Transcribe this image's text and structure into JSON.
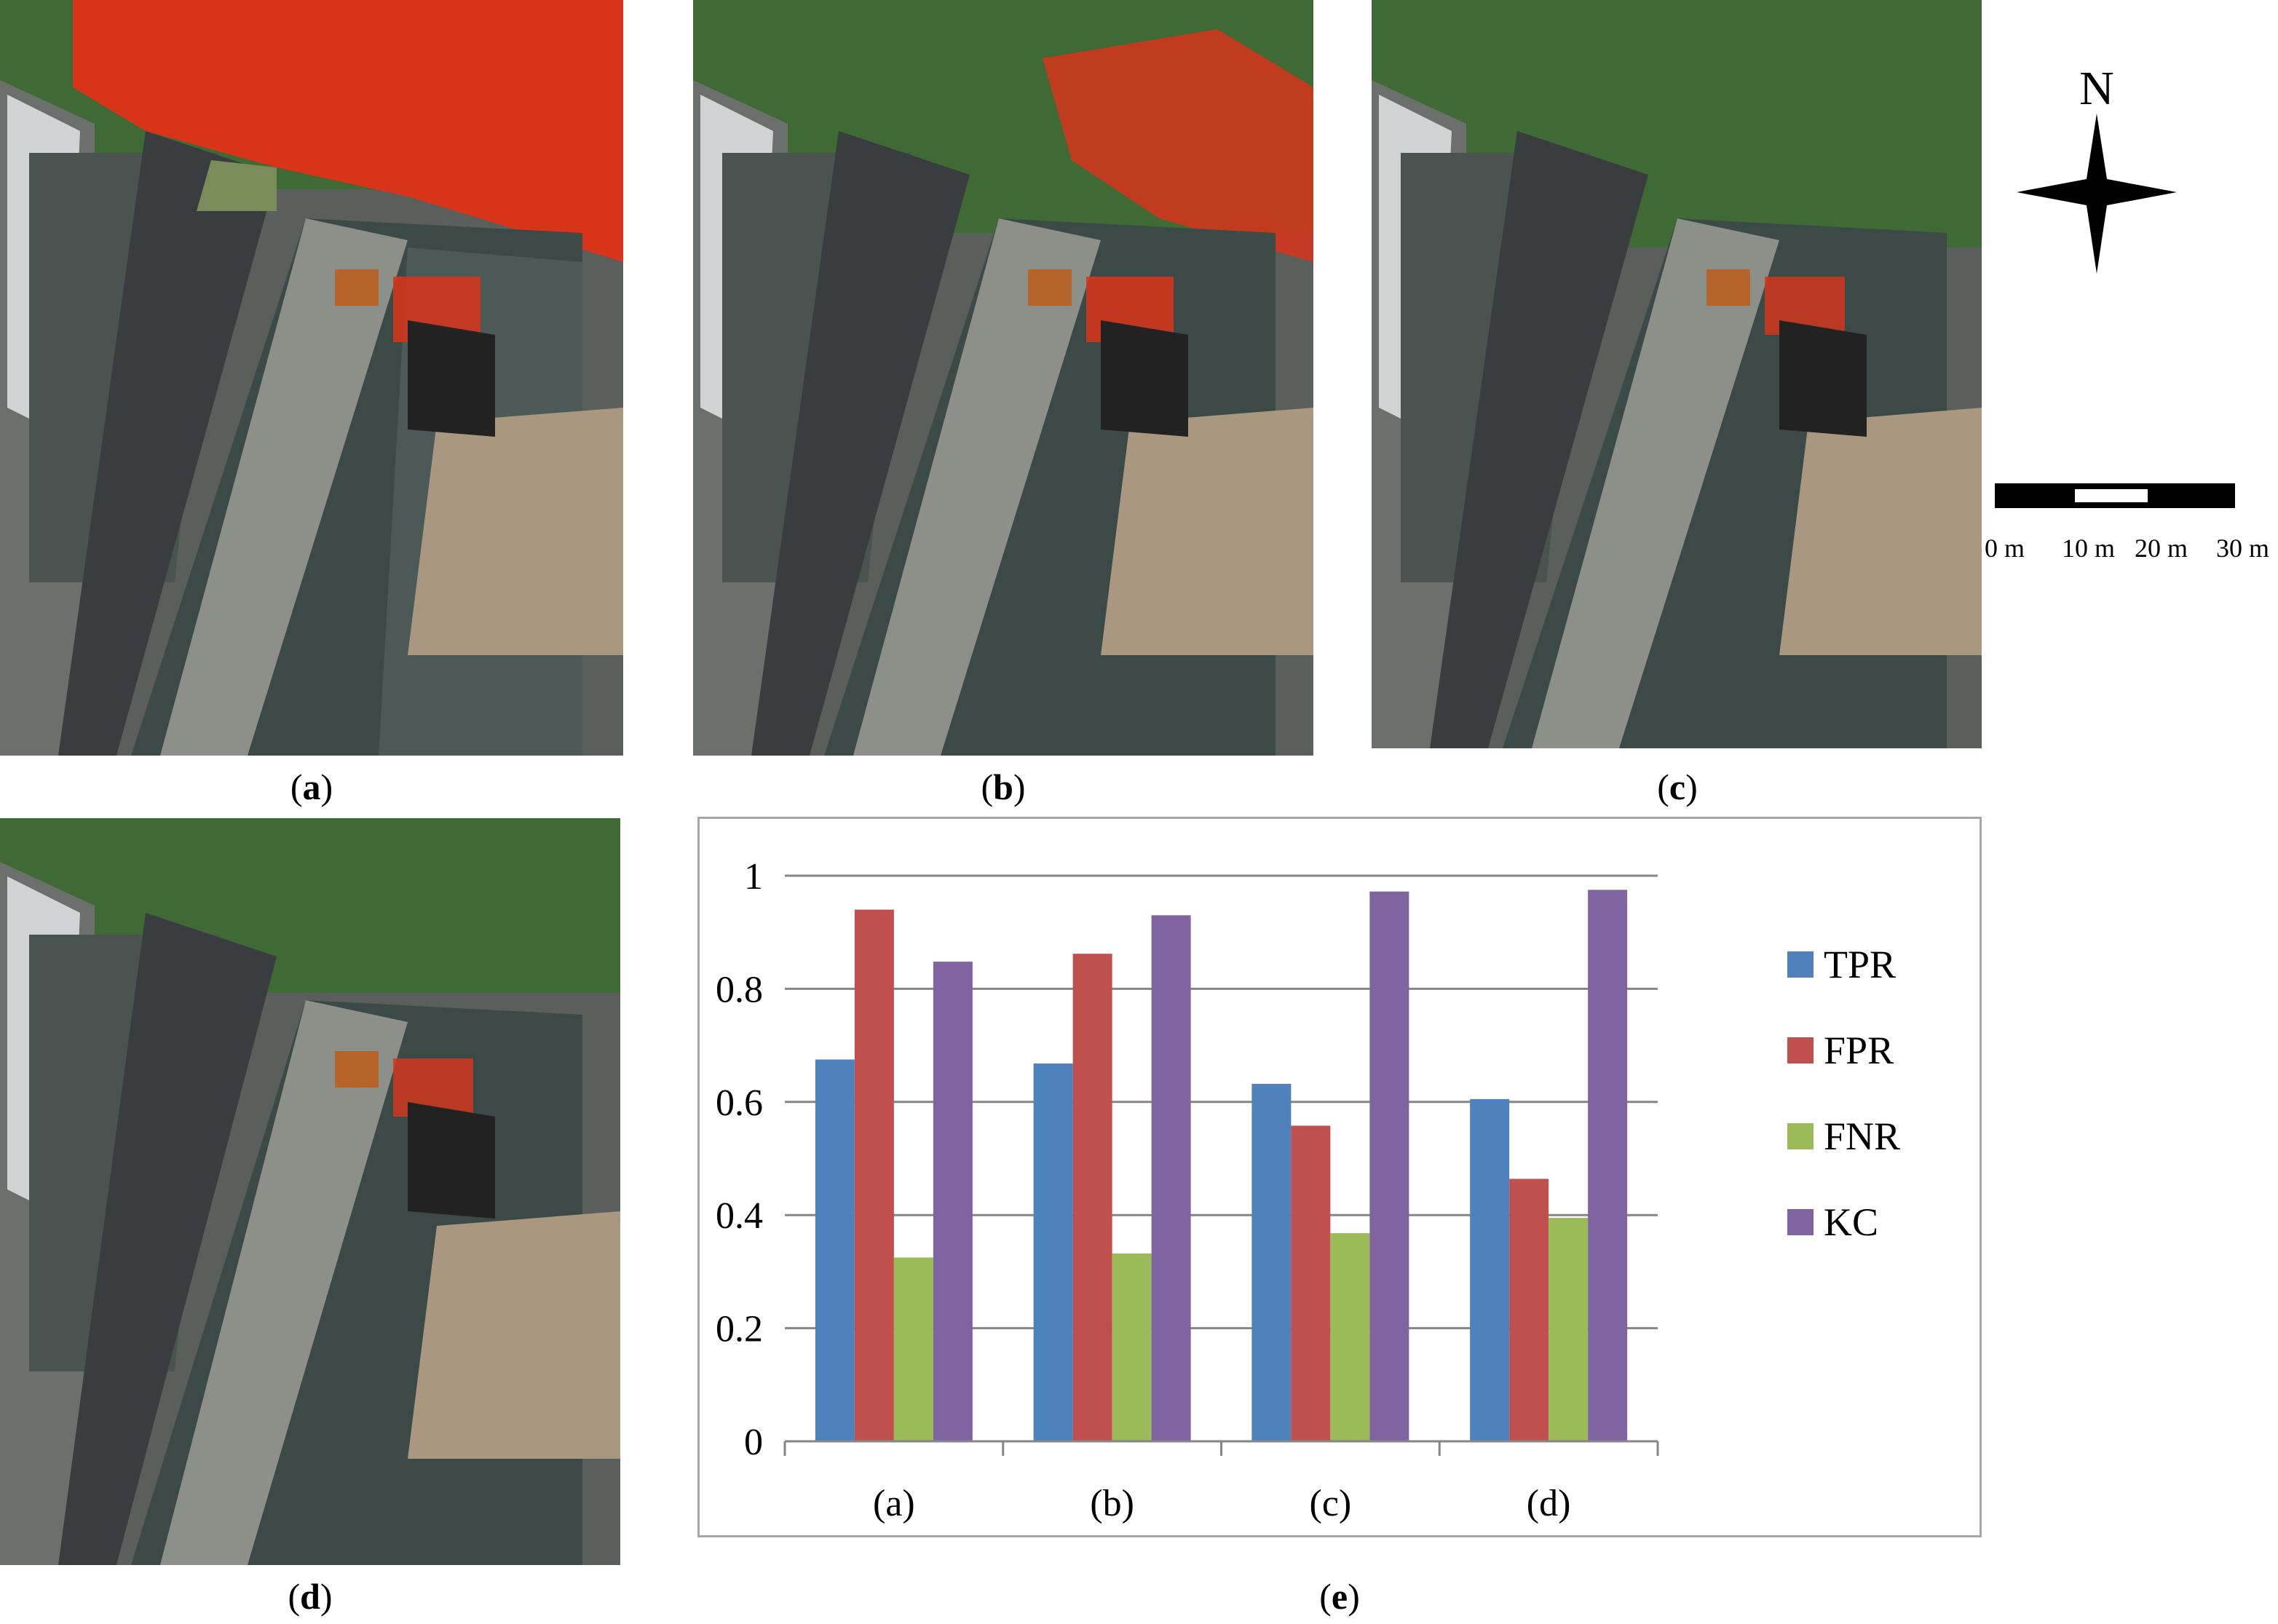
{
  "captions": {
    "a": "a",
    "b": "b",
    "c": "c",
    "d": "d",
    "e": "e"
  },
  "compass": {
    "label": "N",
    "icon": "north-arrow-icon"
  },
  "scale": {
    "labels": [
      "0 m",
      "10 m",
      "20 m",
      "30 m"
    ]
  },
  "colors": {
    "tpr": "#4f81bd",
    "fpr": "#c0504d",
    "fnr": "#9bbb59",
    "kc": "#8064a2",
    "highlight": "#d8341a",
    "grid": "#868686"
  },
  "chart_data": {
    "type": "bar",
    "categories": [
      "(a)",
      "(b)",
      "(c)",
      "(d)"
    ],
    "series": [
      {
        "name": "TPR",
        "values": [
          0.675,
          0.668,
          0.632,
          0.605
        ]
      },
      {
        "name": "FPR",
        "values": [
          0.94,
          0.862,
          0.558,
          0.464
        ]
      },
      {
        "name": "FNR",
        "values": [
          0.325,
          0.332,
          0.368,
          0.395
        ]
      },
      {
        "name": "KC",
        "values": [
          0.848,
          0.93,
          0.972,
          0.975
        ]
      }
    ],
    "ylim": [
      0,
      1
    ],
    "yticks": [
      "0",
      "0.2",
      "0.4",
      "0.6",
      "0.8",
      "1"
    ],
    "grid": true,
    "legend": "right"
  }
}
